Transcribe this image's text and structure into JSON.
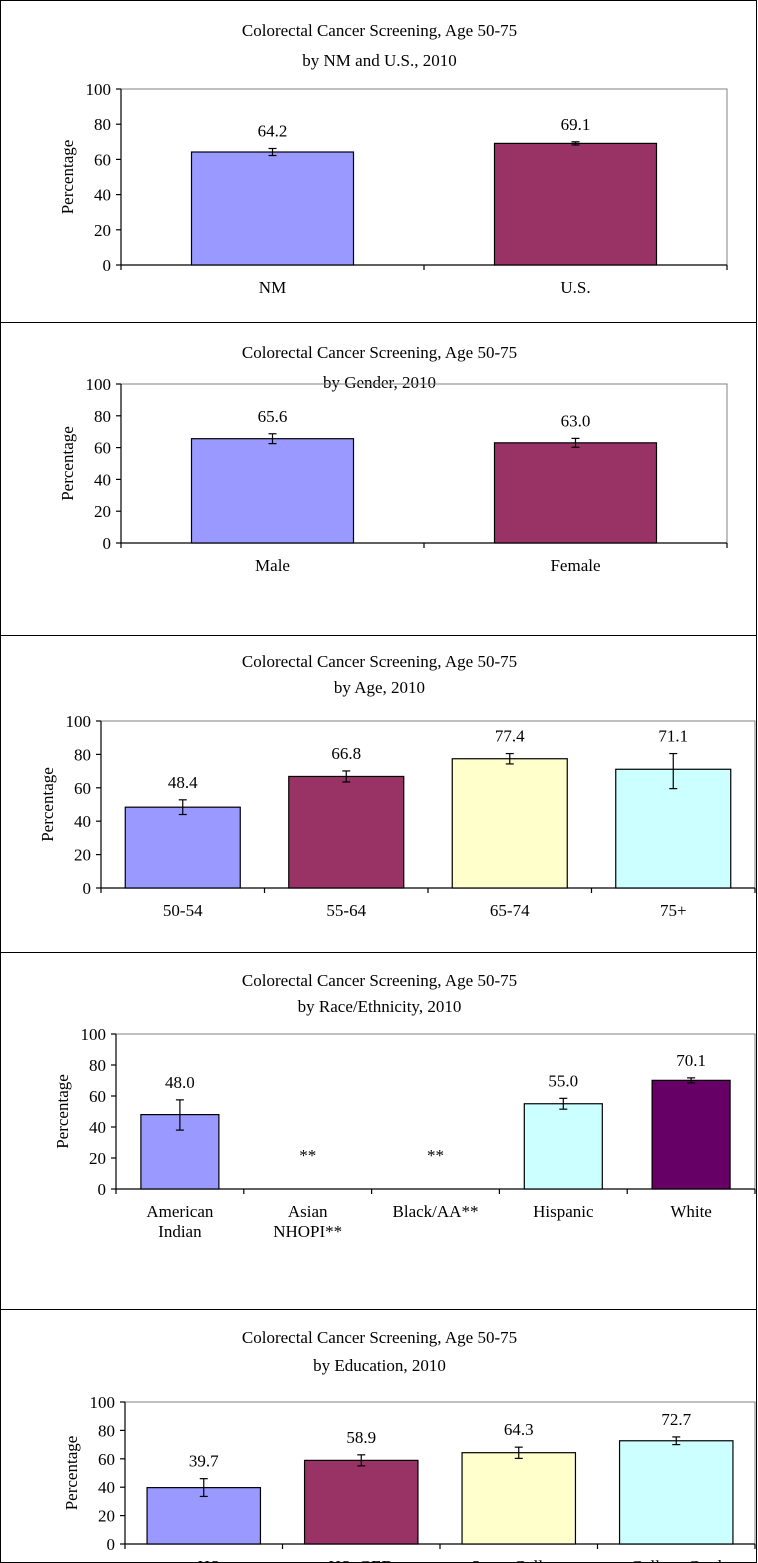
{
  "colors": {
    "blue": "#9999ff",
    "maroon": "#993366",
    "yellow": "#ffffcc",
    "cyan": "#ccffff",
    "purple": "#660066",
    "axis": "#000000",
    "plot_border": "#808080"
  },
  "chart_data": [
    {
      "type": "bar",
      "title": "Colorectal Cancer Screening, Age 50-75",
      "subtitle": "by NM and U.S., 2010",
      "ylabel": "Percentage",
      "ylim": [
        0,
        100
      ],
      "yticks": [
        0,
        20,
        40,
        60,
        80,
        100
      ],
      "categories": [
        [
          "NM"
        ],
        [
          "U.S."
        ]
      ],
      "values": [
        64.2,
        69.1
      ],
      "labels": [
        "64.2",
        "69.1"
      ],
      "error_low": [
        62.2,
        68.2
      ],
      "error_high": [
        66.2,
        70.0
      ],
      "colors": [
        "blue",
        "maroon"
      ]
    },
    {
      "type": "bar",
      "title": "Colorectal Cancer Screening, Age 50-75",
      "subtitle": "by Gender, 2010",
      "ylabel": "Percentage",
      "ylim": [
        0,
        100
      ],
      "yticks": [
        0,
        20,
        40,
        60,
        80,
        100
      ],
      "categories": [
        [
          "Male"
        ],
        [
          "Female"
        ]
      ],
      "values": [
        65.6,
        63.0
      ],
      "labels": [
        "65.6",
        "63.0"
      ],
      "error_low": [
        62.5,
        60.2
      ],
      "error_high": [
        68.7,
        65.8
      ],
      "colors": [
        "blue",
        "maroon"
      ]
    },
    {
      "type": "bar",
      "title": "Colorectal Cancer Screening, Age 50-75",
      "subtitle": "by Age, 2010",
      "ylabel": "Percentage",
      "ylim": [
        0,
        100
      ],
      "yticks": [
        0,
        20,
        40,
        60,
        80,
        100
      ],
      "categories": [
        [
          "50-54"
        ],
        [
          "55-64"
        ],
        [
          "65-74"
        ],
        [
          "75+"
        ]
      ],
      "values": [
        48.4,
        66.8,
        77.4,
        71.1
      ],
      "labels": [
        "48.4",
        "66.8",
        "77.4",
        "71.1"
      ],
      "error_low": [
        44.0,
        63.5,
        74.3,
        59.5
      ],
      "error_high": [
        52.8,
        70.1,
        80.5,
        80.5
      ],
      "colors": [
        "blue",
        "maroon",
        "yellow",
        "cyan"
      ]
    },
    {
      "type": "bar",
      "title": "Colorectal Cancer Screening, Age 50-75",
      "subtitle": "by Race/Ethnicity, 2010",
      "ylabel": "Percentage",
      "ylim": [
        0,
        100
      ],
      "yticks": [
        0,
        20,
        40,
        60,
        80,
        100
      ],
      "categories": [
        [
          "American",
          "Indian"
        ],
        [
          "Asian",
          "NHOPI**"
        ],
        [
          "Black/AA**"
        ],
        [
          "Hispanic"
        ],
        [
          "White"
        ]
      ],
      "values": [
        48.0,
        null,
        null,
        55.0,
        70.1
      ],
      "labels": [
        "48.0",
        "**",
        "**",
        "55.0",
        "70.1"
      ],
      "error_low": [
        38.0,
        null,
        null,
        51.5,
        68.5
      ],
      "error_high": [
        57.5,
        null,
        null,
        58.5,
        71.7
      ],
      "colors": [
        "cyan_blue",
        "none",
        "none",
        "cyan",
        "purple"
      ]
    },
    {
      "type": "bar",
      "title": "Colorectal Cancer Screening, Age 50-75",
      "subtitle": "by Education, 2010",
      "ylabel": "Percentage",
      "ylim": [
        0,
        100
      ],
      "yticks": [
        0,
        20,
        40,
        60,
        80,
        100
      ],
      "categories": [
        [
          "<HS"
        ],
        [
          "HS_GED"
        ],
        [
          "Some College"
        ],
        [
          "College Grad"
        ]
      ],
      "values": [
        39.7,
        58.9,
        64.3,
        72.7
      ],
      "labels": [
        "39.7",
        "58.9",
        "64.3",
        "72.7"
      ],
      "error_low": [
        33.5,
        55.0,
        60.3,
        70.0
      ],
      "error_high": [
        46.0,
        62.8,
        68.2,
        75.4
      ],
      "colors": [
        "blue",
        "maroon",
        "yellow",
        "cyan"
      ]
    }
  ]
}
